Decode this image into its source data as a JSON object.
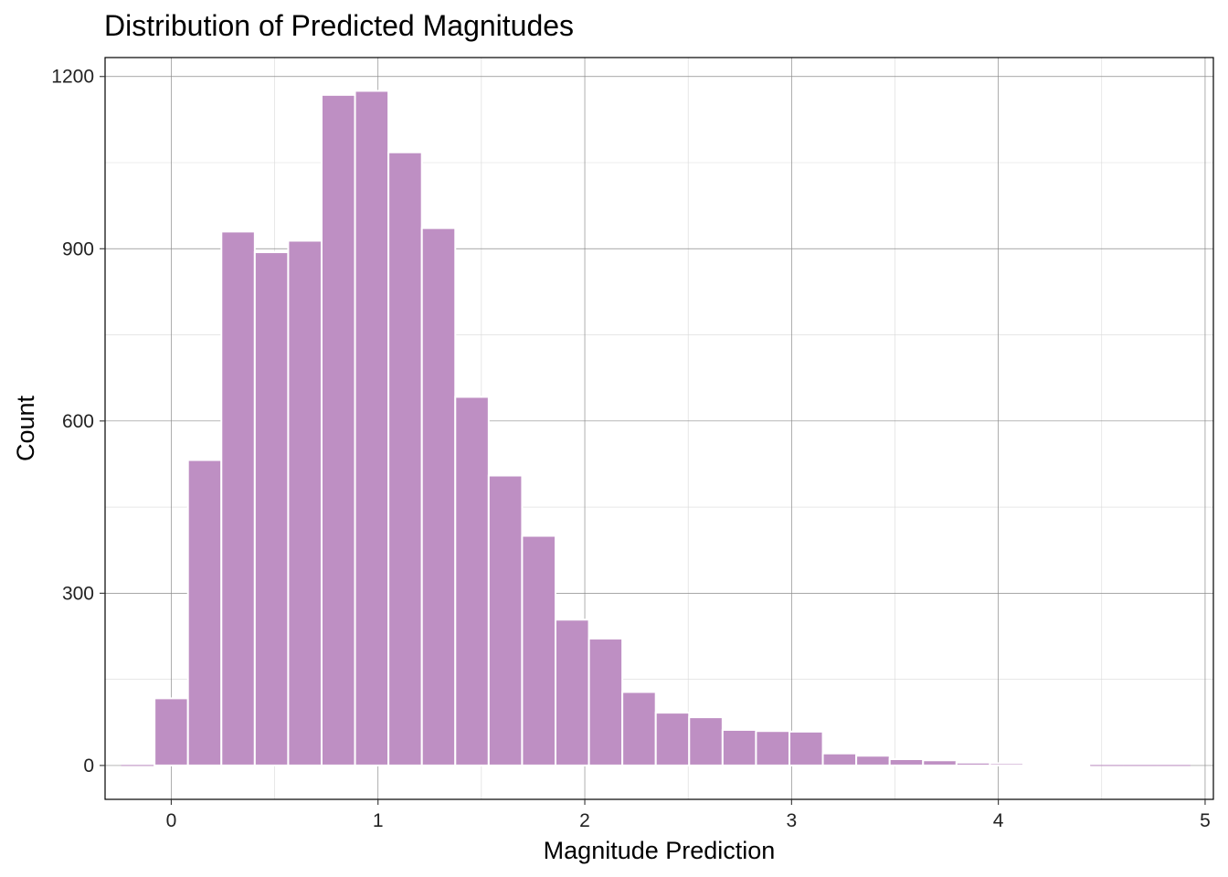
{
  "chart_data": {
    "type": "bar",
    "title": "Distribution of Predicted Magnitudes",
    "xlabel": "Magnitude Prediction",
    "ylabel": "Count",
    "bin_width": 0.1616,
    "bins": [
      {
        "x": -0.1616,
        "count": 0
      },
      {
        "x": 0.0,
        "count": 117
      },
      {
        "x": 0.1616,
        "count": 532
      },
      {
        "x": 0.3232,
        "count": 930
      },
      {
        "x": 0.4848,
        "count": 894
      },
      {
        "x": 0.6464,
        "count": 914
      },
      {
        "x": 0.808,
        "count": 1168
      },
      {
        "x": 0.9696,
        "count": 1175
      },
      {
        "x": 1.1312,
        "count": 1068
      },
      {
        "x": 1.2928,
        "count": 936
      },
      {
        "x": 1.4544,
        "count": 642
      },
      {
        "x": 1.616,
        "count": 505
      },
      {
        "x": 1.7776,
        "count": 400
      },
      {
        "x": 1.9392,
        "count": 254
      },
      {
        "x": 2.1008,
        "count": 221
      },
      {
        "x": 2.2624,
        "count": 128
      },
      {
        "x": 2.424,
        "count": 92
      },
      {
        "x": 2.5856,
        "count": 84
      },
      {
        "x": 2.7472,
        "count": 62
      },
      {
        "x": 2.9088,
        "count": 60
      },
      {
        "x": 3.0704,
        "count": 59
      },
      {
        "x": 3.232,
        "count": 21
      },
      {
        "x": 3.3936,
        "count": 17
      },
      {
        "x": 3.5552,
        "count": 11
      },
      {
        "x": 3.7168,
        "count": 9
      },
      {
        "x": 3.8784,
        "count": 5
      },
      {
        "x": 4.04,
        "count": 4
      },
      {
        "x": 4.2016,
        "count": 1
      },
      {
        "x": 4.3632,
        "count": 1
      },
      {
        "x": 4.5248,
        "count": 0
      },
      {
        "x": 4.6864,
        "count": 0
      },
      {
        "x": 4.848,
        "count": 0
      }
    ],
    "xlim": [
      -0.32,
      5.04
    ],
    "ylim": [
      -59,
      1233
    ],
    "x_ticks": [
      0,
      1,
      2,
      3,
      4,
      5
    ],
    "y_ticks": [
      0,
      300,
      600,
      900,
      1200
    ],
    "x_tick_labels": [
      "0",
      "1",
      "2",
      "3",
      "4",
      "5"
    ],
    "y_tick_labels": [
      "0",
      "300",
      "600",
      "900",
      "1200"
    ],
    "grid": true,
    "colors": {
      "bar_fill": "#be8fc3",
      "bar_outline": "#ffffff",
      "grid_major": "#8c8c8c",
      "grid_minor": "#d9d9d9"
    }
  }
}
